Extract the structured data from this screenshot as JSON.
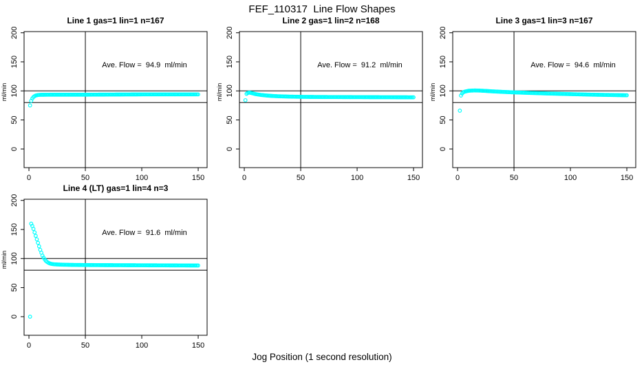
{
  "page": {
    "title": "FEF_110317  Line Flow Shapes",
    "xlabel": "Jog Position (1 second resolution)"
  },
  "colors": {
    "marker": "#00ffff",
    "axis": "#000000",
    "text": "#000000",
    "background": "#ffffff"
  },
  "chart_data": [
    {
      "type": "scatter",
      "title": "Line 1 gas=1 lin=1 n=167",
      "annotation": "Ave. Flow =  94.9  ml/min",
      "ylabel": "ml/min",
      "xticks": [
        0,
        50,
        100,
        150
      ],
      "yticks": [
        0,
        50,
        100,
        150,
        200
      ],
      "xlim": [
        -4.3,
        157.9
      ],
      "ylim": [
        -32,
        202
      ],
      "grid": false,
      "reference_lines": {
        "h": [
          100,
          80
        ],
        "v": [
          50
        ]
      },
      "marker": "open-circle",
      "points": [
        [
          2,
          83
        ],
        [
          3,
          87
        ],
        [
          4,
          89.5
        ],
        [
          5,
          91
        ],
        [
          6,
          92
        ],
        [
          8,
          93
        ],
        [
          10,
          93.3
        ],
        [
          20,
          93.5
        ],
        [
          50,
          93.5
        ],
        [
          100,
          94
        ],
        [
          150,
          94
        ]
      ],
      "outliers": [
        [
          1,
          75
        ]
      ]
    },
    {
      "type": "scatter",
      "title": "Line 2 gas=1 lin=2 n=168",
      "annotation": "Ave. Flow =  91.2  ml/min",
      "ylabel": "ml/min",
      "xticks": [
        0,
        50,
        100,
        150
      ],
      "yticks": [
        0,
        50,
        100,
        150,
        200
      ],
      "xlim": [
        -4.3,
        157.9
      ],
      "ylim": [
        -32,
        202
      ],
      "grid": false,
      "reference_lines": {
        "h": [
          100,
          80
        ],
        "v": [
          50
        ]
      },
      "marker": "open-circle",
      "points": [
        [
          2,
          95
        ],
        [
          3,
          96.5
        ],
        [
          4,
          97
        ],
        [
          5,
          97
        ],
        [
          6,
          96.5
        ],
        [
          8,
          95.5
        ],
        [
          10,
          94.5
        ],
        [
          15,
          93
        ],
        [
          20,
          92
        ],
        [
          25,
          91.3
        ],
        [
          30,
          90.8
        ],
        [
          40,
          90.2
        ],
        [
          50,
          89.8
        ],
        [
          70,
          89.5
        ],
        [
          100,
          89.3
        ],
        [
          150,
          89
        ]
      ],
      "outliers": [
        [
          1,
          84
        ]
      ]
    },
    {
      "type": "scatter",
      "title": "Line 3 gas=1 lin=3 n=167",
      "annotation": "Ave. Flow =  94.6  ml/min",
      "ylabel": "ml/min",
      "xticks": [
        0,
        50,
        100,
        150
      ],
      "yticks": [
        0,
        50,
        100,
        150,
        200
      ],
      "xlim": [
        -4.3,
        157.9
      ],
      "ylim": [
        -32,
        202
      ],
      "grid": false,
      "reference_lines": {
        "h": [
          100,
          80
        ],
        "v": [
          50
        ]
      },
      "marker": "open-circle",
      "points": [
        [
          3,
          92
        ],
        [
          4,
          95.5
        ],
        [
          5,
          97.5
        ],
        [
          6,
          98.5
        ],
        [
          8,
          99.5
        ],
        [
          10,
          100.3
        ],
        [
          15,
          100.8
        ],
        [
          20,
          100.5
        ],
        [
          25,
          100
        ],
        [
          30,
          99.3
        ],
        [
          40,
          98.3
        ],
        [
          50,
          97.5
        ],
        [
          60,
          96.8
        ],
        [
          80,
          95.5
        ],
        [
          100,
          94.5
        ],
        [
          120,
          93.5
        ],
        [
          150,
          92.5
        ]
      ],
      "outliers": [
        [
          2,
          66
        ]
      ]
    },
    {
      "type": "scatter",
      "title": "Line 4 (LT) gas=1 lin=4 n=3",
      "annotation": "Ave. Flow =  91.6  ml/min",
      "ylabel": "ml/min",
      "xticks": [
        0,
        50,
        100,
        150
      ],
      "yticks": [
        0,
        50,
        100,
        150,
        200
      ],
      "xlim": [
        -4.3,
        157.9
      ],
      "ylim": [
        -32,
        202
      ],
      "grid": false,
      "reference_lines": {
        "h": [
          100,
          80
        ],
        "v": [
          50
        ]
      },
      "marker": "open-circle",
      "points": [
        [
          2,
          160
        ],
        [
          3,
          156
        ],
        [
          4,
          151
        ],
        [
          5,
          145
        ],
        [
          6,
          139
        ],
        [
          7,
          133
        ],
        [
          8,
          127
        ],
        [
          9,
          121
        ],
        [
          10,
          115
        ],
        [
          11,
          110
        ],
        [
          12,
          105
        ],
        [
          13,
          101.5
        ],
        [
          14,
          98.5
        ],
        [
          15,
          96
        ],
        [
          16,
          94.3
        ],
        [
          17,
          93
        ],
        [
          18,
          92
        ],
        [
          19,
          91.3
        ],
        [
          20,
          90.8
        ],
        [
          22,
          90.2
        ],
        [
          25,
          89.8
        ],
        [
          30,
          89.4
        ],
        [
          40,
          89
        ],
        [
          60,
          88.7
        ],
        [
          100,
          88.4
        ],
        [
          150,
          88
        ]
      ],
      "outliers": [
        [
          1,
          0
        ]
      ]
    }
  ]
}
